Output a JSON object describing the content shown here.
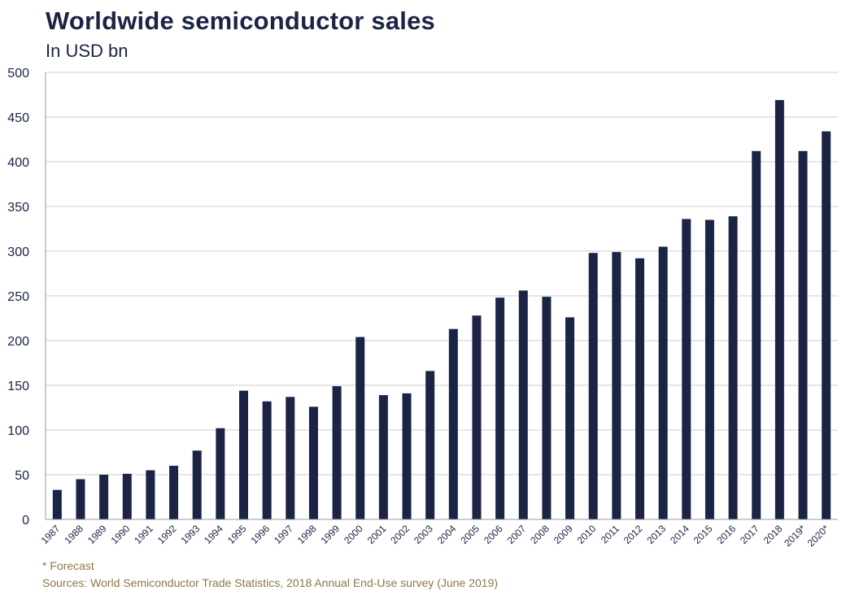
{
  "chart_data": {
    "type": "bar",
    "title": "Worldwide semiconductor sales",
    "subtitle": "In USD bn",
    "categories": [
      "1987",
      "1988",
      "1989",
      "1990",
      "1991",
      "1992",
      "1993",
      "1994",
      "1995",
      "1996",
      "1997",
      "1998",
      "1999",
      "2000",
      "2001",
      "2002",
      "2003",
      "2004",
      "2005",
      "2006",
      "2007",
      "2008",
      "2009",
      "2010",
      "2011",
      "2012",
      "2013",
      "2014",
      "2015",
      "2016",
      "2017",
      "2018",
      "2019*",
      "2020*"
    ],
    "values": [
      33,
      45,
      50,
      51,
      55,
      60,
      77,
      102,
      144,
      132,
      137,
      126,
      149,
      204,
      139,
      141,
      166,
      213,
      228,
      248,
      256,
      249,
      226,
      298,
      299,
      292,
      305,
      336,
      335,
      339,
      412,
      469,
      412,
      434
    ],
    "ylim": [
      0,
      500
    ],
    "yticks": [
      0,
      50,
      100,
      150,
      200,
      250,
      300,
      350,
      400,
      450,
      500
    ],
    "grid": true,
    "bar_color": "#1b2444",
    "xlabel": "",
    "ylabel": ""
  },
  "footnote": "* Forecast",
  "source": "Sources: World Semiconductor Trade Statistics, 2018 Annual End-Use survey (June 2019)"
}
